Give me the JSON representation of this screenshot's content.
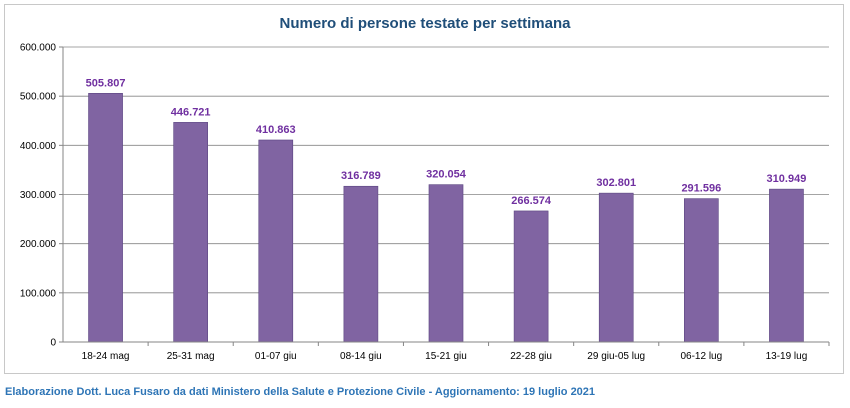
{
  "chart_data": {
    "type": "bar",
    "title": "Numero di persone testate per settimana",
    "categories": [
      "18-24 mag",
      "25-31 mag",
      "01-07 giu",
      "08-14 giu",
      "15-21 giu",
      "22-28 giu",
      "29 giu-05 lug",
      "06-12 lug",
      "13-19 lug"
    ],
    "values": [
      505807,
      446721,
      410863,
      316789,
      320054,
      266574,
      302801,
      291596,
      310949
    ],
    "value_labels": [
      "505.807",
      "446.721",
      "410.863",
      "316.789",
      "320.054",
      "266.574",
      "302.801",
      "291.596",
      "310.949"
    ],
    "ylim": [
      0,
      600000
    ],
    "yticks": [
      0,
      100000,
      200000,
      300000,
      400000,
      500000,
      600000
    ],
    "ytick_labels": [
      "0",
      "100.000",
      "200.000",
      "300.000",
      "400.000",
      "500.000",
      "600.000"
    ],
    "xlabel": "",
    "ylabel": "",
    "grid": true,
    "legend": "none",
    "bar_color": "#8064a2",
    "label_color": "#7030a0"
  },
  "footer": {
    "note": "Elaborazione Dott. Luca Fusaro da dati Ministero della Salute e Protezione Civile - Aggiornamento: 19 luglio 2021"
  }
}
